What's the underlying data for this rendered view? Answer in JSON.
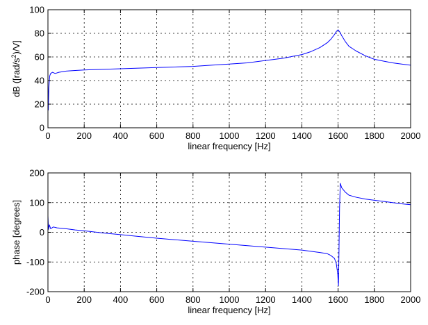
{
  "chart_data": [
    {
      "type": "line",
      "title": "",
      "xlabel": "linear frequency [Hz]",
      "ylabel_parts": [
        "dB ([rad/s",
        "2",
        ")/V]"
      ],
      "xlim": [
        0,
        2000
      ],
      "ylim": [
        0,
        100
      ],
      "xticks": [
        0,
        200,
        400,
        600,
        800,
        1000,
        1200,
        1400,
        1600,
        1800,
        2000
      ],
      "yticks": [
        0,
        20,
        40,
        60,
        80,
        100
      ],
      "grid": true,
      "grid_style": "dotted",
      "line_color": "#0000ff",
      "series": [
        {
          "x": [
            0,
            2,
            5,
            10,
            15,
            25,
            40,
            60,
            100,
            150,
            200,
            300,
            400,
            500,
            600,
            700,
            800,
            900,
            1000,
            1100,
            1200,
            1300,
            1350,
            1400,
            1450,
            1500,
            1540,
            1560,
            1580,
            1590,
            1600,
            1610,
            1620,
            1640,
            1660,
            1700,
            1750,
            1800,
            1850,
            1900,
            1950,
            2000
          ],
          "values": [
            40,
            15,
            34,
            44,
            46,
            47,
            46,
            47,
            48,
            48.5,
            49,
            49.5,
            50,
            50.5,
            51,
            51.5,
            52,
            53,
            54,
            55,
            57,
            59,
            60.5,
            62,
            64.5,
            68,
            72,
            75,
            79,
            81.5,
            83,
            81,
            78,
            73,
            69,
            65,
            61,
            58,
            56.5,
            55,
            54,
            53
          ]
        }
      ]
    },
    {
      "type": "line",
      "title": "",
      "xlabel": "linear frequency [Hz]",
      "ylabel": "phase [degrees]",
      "xlim": [
        0,
        2000
      ],
      "ylim": [
        -200,
        200
      ],
      "xticks": [
        0,
        200,
        400,
        600,
        800,
        1000,
        1200,
        1400,
        1600,
        1800,
        2000
      ],
      "yticks": [
        -200,
        -100,
        0,
        100,
        200
      ],
      "grid": true,
      "grid_style": "dotted",
      "line_color": "#0000ff",
      "series": [
        {
          "x": [
            0,
            3,
            8,
            15,
            30,
            50,
            100,
            150,
            200,
            300,
            400,
            500,
            600,
            700,
            800,
            900,
            1000,
            1100,
            1200,
            1300,
            1400,
            1450,
            1500,
            1540,
            1560,
            1580,
            1590,
            1598,
            1602,
            1605,
            1608,
            1612,
            1620,
            1640,
            1660,
            1700,
            1750,
            1800,
            1850,
            1900,
            1950,
            2000
          ],
          "values": [
            55,
            10,
            25,
            12,
            18,
            15,
            12,
            8,
            5,
            -2,
            -8,
            -14,
            -20,
            -25,
            -30,
            -35,
            -40,
            -45,
            -50,
            -55,
            -60,
            -64,
            -68,
            -72,
            -78,
            -88,
            -105,
            -140,
            -180,
            -60,
            80,
            165,
            150,
            135,
            125,
            118,
            112,
            108,
            104,
            100,
            96,
            93
          ]
        }
      ]
    }
  ]
}
